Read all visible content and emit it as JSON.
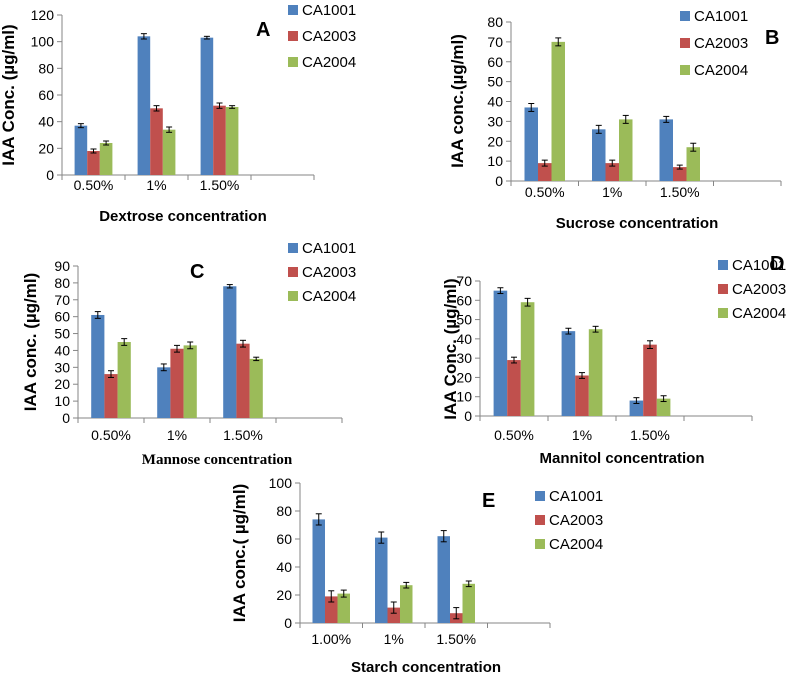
{
  "colors": {
    "CA1001": "#4F81BD",
    "CA2003": "#C0504D",
    "CA2004": "#9BBB59"
  },
  "chart_data": [
    {
      "panel": "A",
      "type": "bar",
      "categories": [
        "0.50%",
        "1%",
        "1.50%"
      ],
      "series": [
        {
          "name": "CA1001",
          "values": [
            37,
            104,
            103
          ],
          "errors": [
            1.5,
            2,
            1
          ]
        },
        {
          "name": "CA2003",
          "values": [
            18,
            50,
            52
          ],
          "errors": [
            1.5,
            2,
            2
          ]
        },
        {
          "name": "CA2004",
          "values": [
            24,
            34,
            51
          ],
          "errors": [
            1.5,
            2,
            1
          ]
        }
      ],
      "xlabel": "Dextrose concentration",
      "ylabel": "IAA Conc. (µg/ml)",
      "ylim": [
        0,
        120
      ],
      "yticks": [
        0,
        20,
        40,
        60,
        80,
        100,
        120
      ]
    },
    {
      "panel": "B",
      "type": "bar",
      "categories": [
        "0.50%",
        "1%",
        "1.50%"
      ],
      "series": [
        {
          "name": "CA1001",
          "values": [
            37,
            26,
            31
          ],
          "errors": [
            2,
            2,
            1.5
          ]
        },
        {
          "name": "CA2003",
          "values": [
            9,
            9,
            7
          ],
          "errors": [
            1.5,
            1.5,
            1
          ]
        },
        {
          "name": "CA2004",
          "values": [
            70,
            31,
            17
          ],
          "errors": [
            2,
            2,
            2
          ]
        }
      ],
      "xlabel": "Sucrose concentration",
      "ylabel": "IAA conc.(µg/ml)",
      "ylim": [
        0,
        80
      ],
      "yticks": [
        0,
        10,
        20,
        30,
        40,
        50,
        60,
        70,
        80
      ]
    },
    {
      "panel": "C",
      "type": "bar",
      "categories": [
        "0.50%",
        "1%",
        "1.50%"
      ],
      "series": [
        {
          "name": "CA1001",
          "values": [
            61,
            30,
            78
          ],
          "errors": [
            2,
            2,
            1
          ]
        },
        {
          "name": "CA2003",
          "values": [
            26,
            41,
            44
          ],
          "errors": [
            2,
            2,
            2
          ]
        },
        {
          "name": "CA2004",
          "values": [
            45,
            43,
            35
          ],
          "errors": [
            2,
            2,
            1
          ]
        }
      ],
      "xlabel": "Mannose concentration",
      "ylabel": "IAA conc. (µg/ml)",
      "ylim": [
        0,
        90
      ],
      "yticks": [
        0,
        10,
        20,
        30,
        40,
        50,
        60,
        70,
        80,
        90
      ]
    },
    {
      "panel": "D",
      "type": "bar",
      "categories": [
        "0.50%",
        "1%",
        "1.50%"
      ],
      "series": [
        {
          "name": "CA1001",
          "values": [
            65,
            44,
            8
          ],
          "errors": [
            1.5,
            1.5,
            1.5
          ]
        },
        {
          "name": "CA2003",
          "values": [
            29,
            21,
            37
          ],
          "errors": [
            1.5,
            1.5,
            2
          ]
        },
        {
          "name": "CA2004",
          "values": [
            59,
            45,
            9
          ],
          "errors": [
            2,
            1.5,
            1.5
          ]
        }
      ],
      "xlabel": "Mannitol concentration",
      "ylabel": "IAA Conc. (µg/ml)",
      "ylim": [
        0,
        70
      ],
      "yticks": [
        0,
        10,
        20,
        30,
        40,
        50,
        60,
        70
      ]
    },
    {
      "panel": "E",
      "type": "bar",
      "categories": [
        "1.00%",
        "1%",
        "1.50%"
      ],
      "series": [
        {
          "name": "CA1001",
          "values": [
            74,
            61,
            62
          ],
          "errors": [
            4,
            4,
            4
          ]
        },
        {
          "name": "CA2003",
          "values": [
            19,
            11,
            7
          ],
          "errors": [
            4,
            4,
            4
          ]
        },
        {
          "name": "CA2004",
          "values": [
            21,
            27,
            28
          ],
          "errors": [
            2.5,
            2,
            2
          ]
        }
      ],
      "xlabel": "Starch concentration",
      "ylabel": "IAA conc.( µg/ml)",
      "ylim": [
        0,
        100
      ],
      "yticks": [
        0,
        20,
        40,
        60,
        80,
        100
      ]
    }
  ]
}
